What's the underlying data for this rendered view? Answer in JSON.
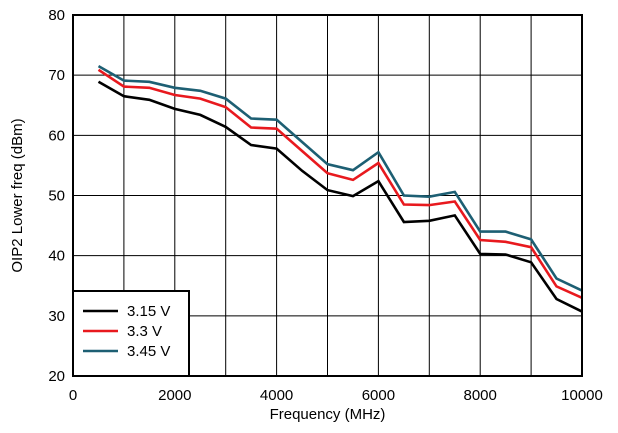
{
  "chart_data": {
    "type": "line",
    "title": "",
    "xlabel": "Frequency (MHz)",
    "ylabel": "OIP2 Lower freq (dBm)",
    "xlim": [
      0,
      10000
    ],
    "ylim": [
      20,
      80
    ],
    "xticks": [
      0,
      2000,
      4000,
      6000,
      8000,
      10000
    ],
    "xtick_labels": [
      "0",
      "2000",
      "4000",
      "6000",
      "8000",
      "10000"
    ],
    "yticks": [
      20,
      30,
      40,
      50,
      60,
      70,
      80
    ],
    "ytick_labels": [
      "20",
      "30",
      "40",
      "50",
      "60",
      "70",
      "80"
    ],
    "grid": true,
    "legend_position": "bottom-left",
    "x": [
      500,
      1000,
      1500,
      2000,
      2500,
      3000,
      3500,
      4000,
      4500,
      5000,
      5500,
      6000,
      6500,
      7000,
      7500,
      8000,
      8500,
      9000,
      9500,
      10000
    ],
    "series": [
      {
        "name": "3.15 V",
        "color": "#000000",
        "values": [
          68.9,
          66.5,
          65.9,
          64.4,
          63.4,
          61.4,
          58.4,
          57.8,
          54.1,
          50.9,
          49.9,
          52.4,
          45.6,
          45.8,
          46.7,
          40.3,
          40.2,
          38.9,
          32.8,
          30.7
        ]
      },
      {
        "name": "3.3 V",
        "color": "#e8191e",
        "values": [
          70.9,
          68.1,
          67.9,
          66.7,
          66.1,
          64.7,
          61.3,
          61.1,
          57.4,
          53.7,
          52.6,
          55.4,
          48.5,
          48.4,
          49.0,
          42.6,
          42.3,
          41.4,
          34.9,
          33.0
        ]
      },
      {
        "name": "3.45 V",
        "color": "#1d5f73",
        "values": [
          71.5,
          69.1,
          68.9,
          67.9,
          67.4,
          66.1,
          62.8,
          62.6,
          58.9,
          55.2,
          54.2,
          57.2,
          50.0,
          49.8,
          50.6,
          44.0,
          44.0,
          42.7,
          36.2,
          34.2
        ]
      }
    ]
  }
}
